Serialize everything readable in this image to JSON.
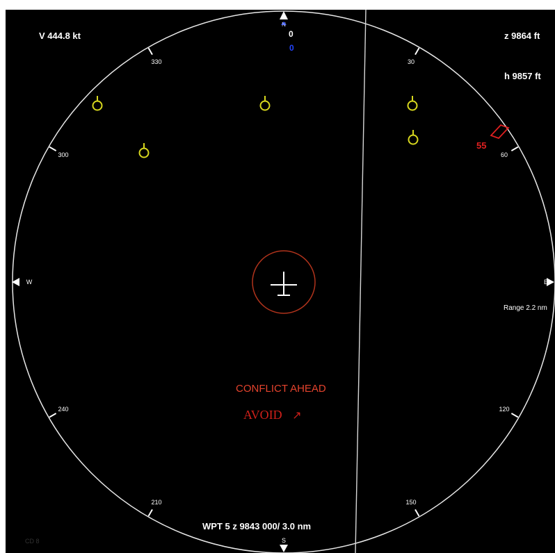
{
  "readouts": {
    "speed": "V 444.8 kt",
    "altitude_z": "z 9864 ft",
    "altitude_h": "h 9857 ft",
    "heading_value": "0",
    "heading_sub": "0",
    "range": "Range 2.2 nm",
    "waypoint": "WPT 5  z 9843 000/ 3.0 nm",
    "footer_code": "CD 8"
  },
  "compass": {
    "north": "N",
    "south": "S",
    "east": "E",
    "west": "W",
    "ticks": [
      "30",
      "60",
      "120",
      "150",
      "210",
      "240",
      "300",
      "330"
    ]
  },
  "alert": {
    "line1": "CONFLICT AHEAD",
    "line2": "AVOID",
    "arrow": "↗"
  },
  "intruder": {
    "label": "55",
    "color": "#e02020"
  },
  "colors": {
    "background": "#000000",
    "ring": "#ffffff",
    "waypoint_marker": "#d8d81e",
    "ownship_ring": "#b0331c",
    "north_marker": "#2244ff"
  }
}
